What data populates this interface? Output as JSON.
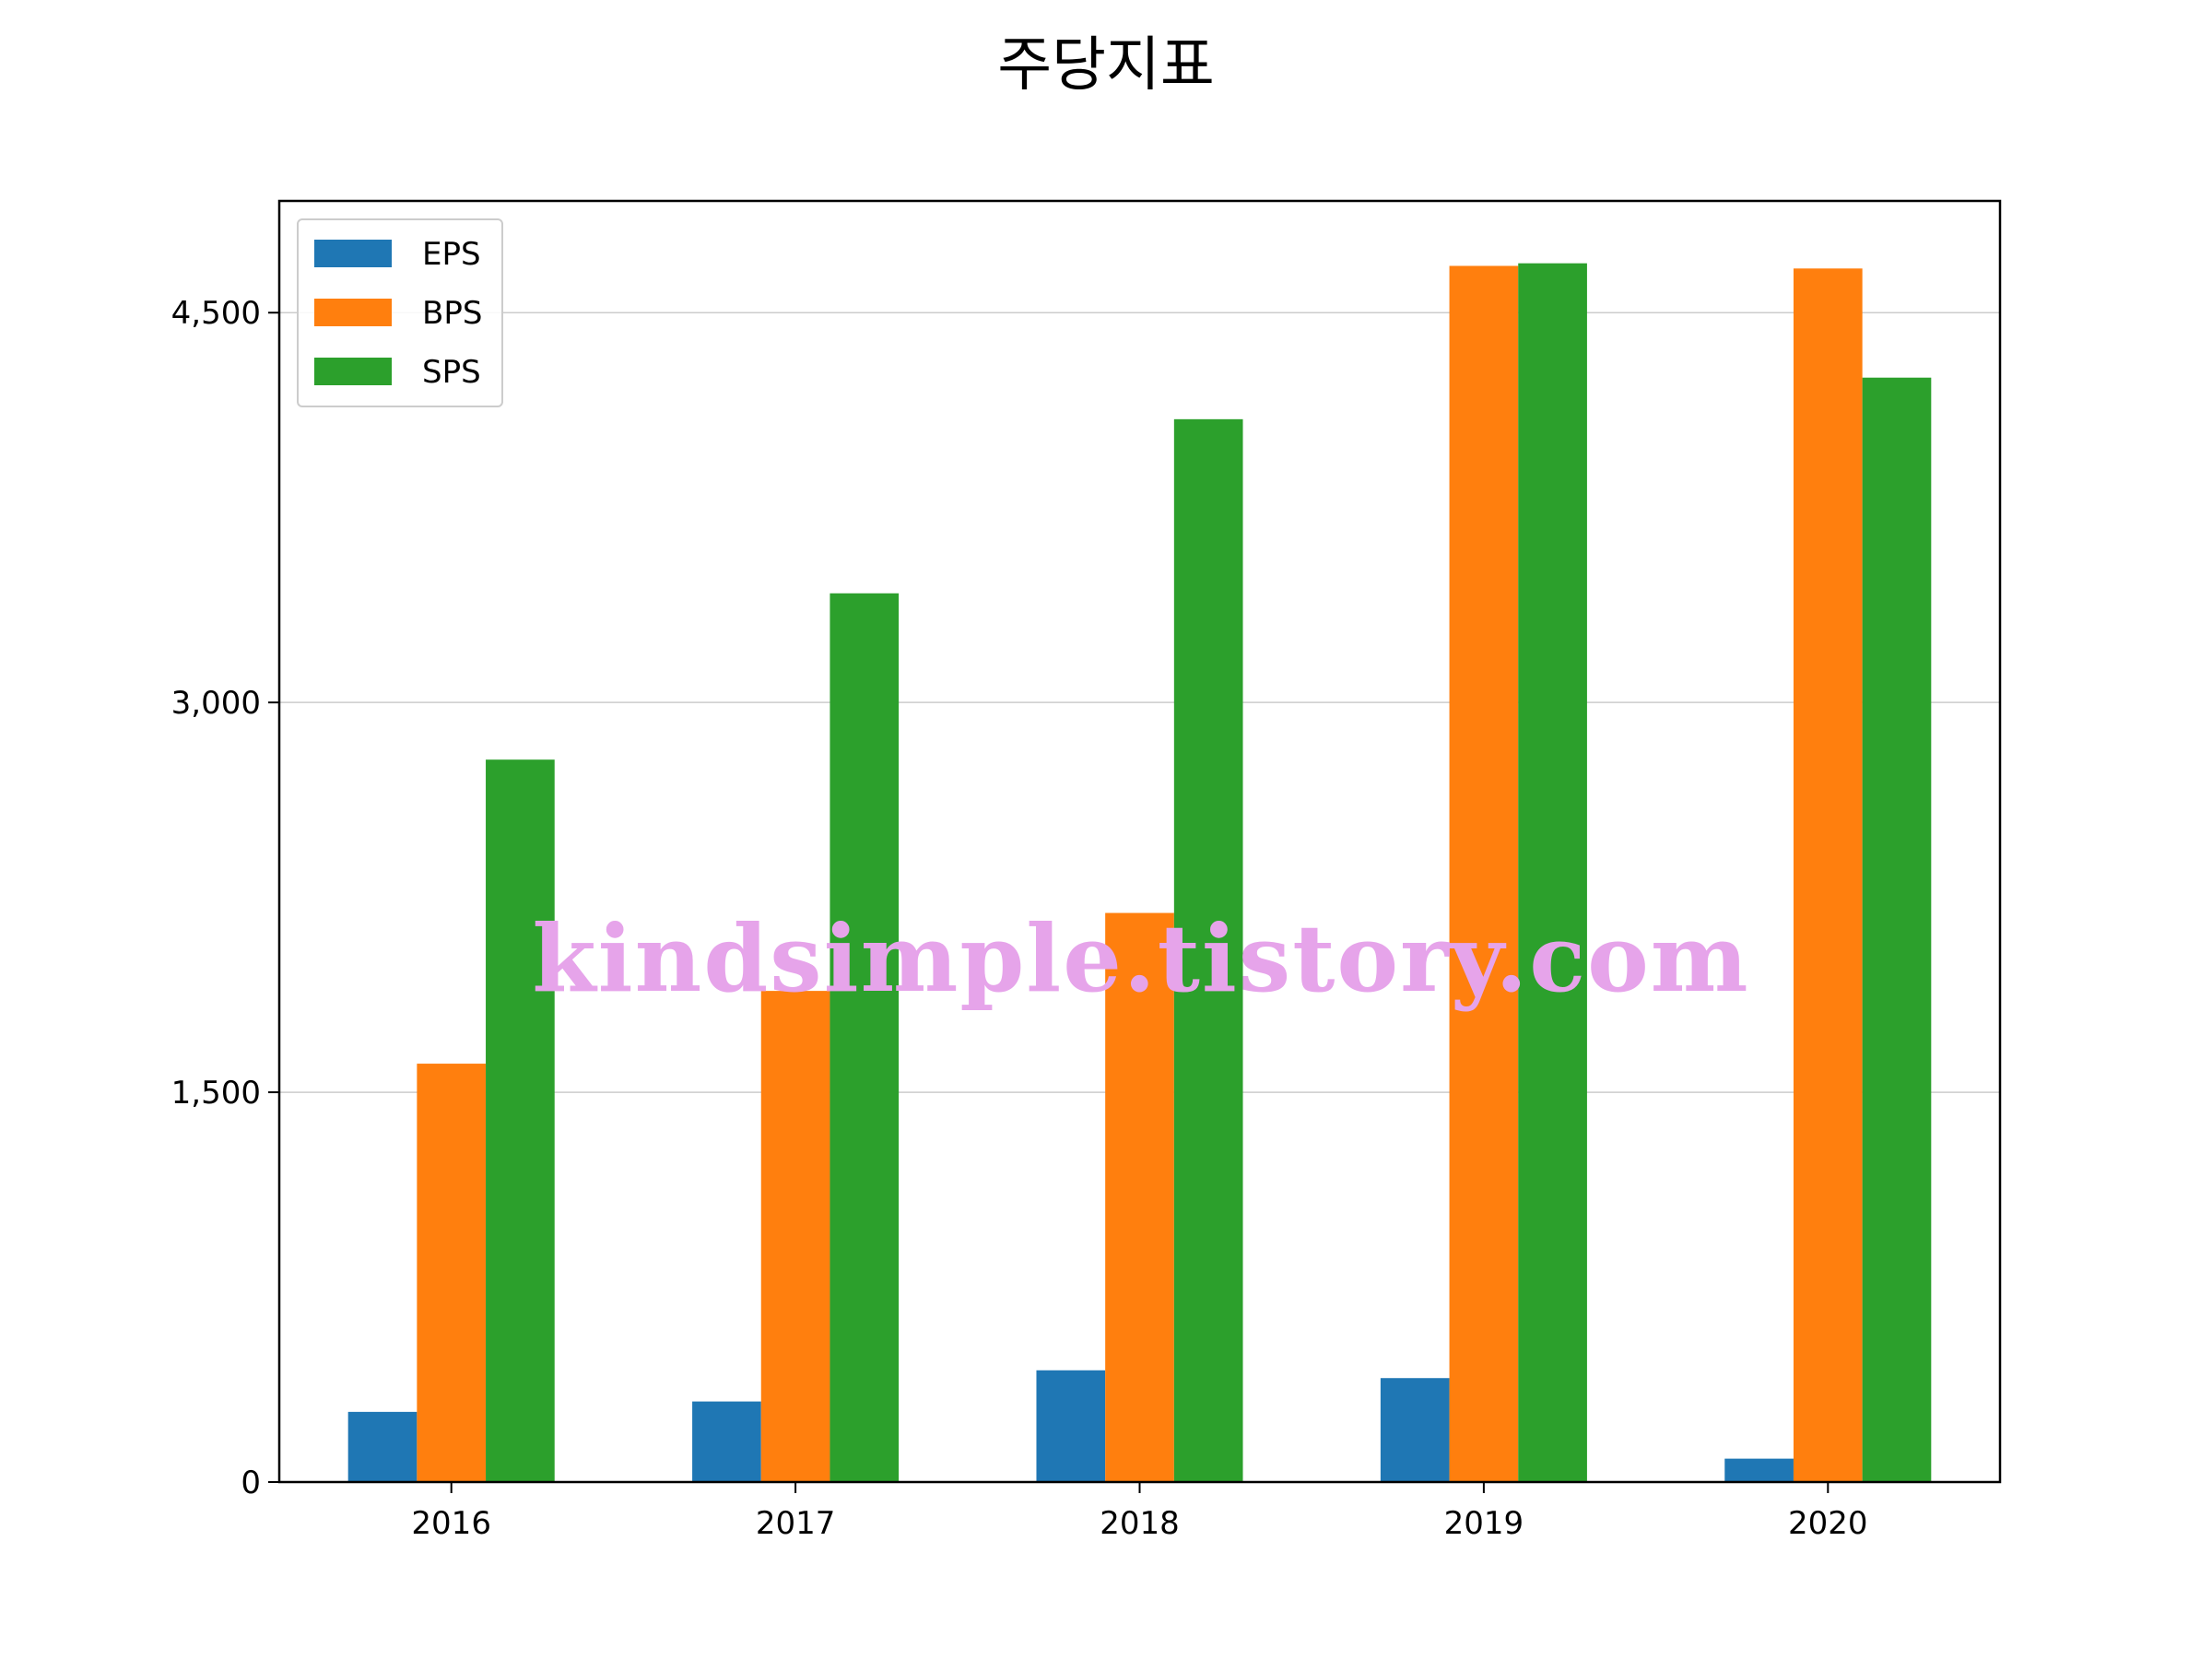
{
  "chart_data": {
    "type": "bar",
    "title": "주당지표",
    "xlabel": "",
    "ylabel": "",
    "categories": [
      "2016",
      "2017",
      "2018",
      "2019",
      "2020"
    ],
    "series": [
      {
        "name": "EPS",
        "color": "#1f77b4",
        "values": [
          270,
          310,
          430,
          400,
          90
        ]
      },
      {
        "name": "BPS",
        "color": "#ff7f0e",
        "values": [
          1610,
          1890,
          2190,
          4680,
          4670
        ]
      },
      {
        "name": "SPS",
        "color": "#2ca02c",
        "values": [
          2780,
          3420,
          4090,
          4690,
          4250
        ]
      }
    ],
    "ylim": [
      0,
      4930
    ],
    "yticks": [
      0,
      1500,
      3000,
      4500
    ],
    "ytick_labels": [
      "0",
      "1,500",
      "3,000",
      "4,500"
    ],
    "grid": true,
    "legend_position": "top-left",
    "watermark": "kindsimple.tistory.com",
    "watermark_color": "#e6a4ea"
  }
}
